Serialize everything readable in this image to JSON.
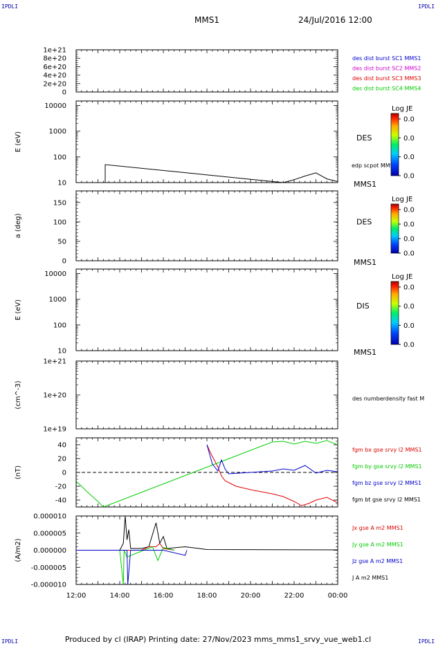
{
  "header": {
    "corner_tl": "IPDLI",
    "corner_tr": "IPDLI",
    "corner_bl": "IPDLI",
    "corner_br": "IPDLI",
    "spacecraft": "MMS1",
    "date_time": "24/Jul/2016 12:00"
  },
  "footer": {
    "text": "Produced by cl (IRAP)   Printing date: 27/Nov/2023   mms_mms1_srvy_vue_web1.cl"
  },
  "colors": {
    "black": "#000000",
    "red": "#dd0000",
    "green": "#00cc00",
    "blue": "#0000cc",
    "magenta": "#cc00cc"
  },
  "chart_data": {
    "type": "line",
    "x_ticks": [
      "12:00",
      "14:00",
      "16:00",
      "18:00",
      "20:00",
      "22:00",
      "00:00"
    ],
    "panels": [
      {
        "id": "burst",
        "ylabel": "",
        "yscale": "linear",
        "ylim": [
          0,
          1e+21
        ],
        "yticks": [
          "1e+21",
          "8e+20",
          "6e+20",
          "4e+20",
          "2e+20",
          "0"
        ],
        "dashed_zero": true,
        "legend": [
          {
            "text": "des dist burst SC1 MMS1",
            "color": "#0000cc"
          },
          {
            "text": "des dist burst SC2 MMS2",
            "color": "#cc00cc"
          },
          {
            "text": "des dist burst SC3 MMS3",
            "color": "#dd0000"
          },
          {
            "text": "des dist burst SC4 MMS4",
            "color": "#00cc00"
          }
        ]
      },
      {
        "id": "des-energy",
        "ylabel": "E (eV)",
        "yscale": "log",
        "ylim": [
          10,
          15000
        ],
        "yticks": [
          "10000",
          "1000",
          "100",
          "10"
        ],
        "instrument": "DES",
        "spacecraft_label": "MMS1",
        "overlay_label": "edp scpot MMS1",
        "colorbar": {
          "title": "Log JE",
          "ticks": [
            "0.0",
            "0.0",
            "0.0",
            "0.0"
          ]
        },
        "series": [
          {
            "name": "edp scpot MMS1",
            "color": "#000000",
            "x": [
              "13:20",
              "13:20",
              "21:30",
              "22:00",
              "22:30",
              "23:00",
              "23:30",
              "00:00"
            ],
            "values": [
              10,
              50,
              10,
              13,
              18,
              24,
              14,
              11
            ]
          }
        ]
      },
      {
        "id": "des-pitch",
        "ylabel": "a (deg)",
        "yscale": "linear",
        "ylim": [
          0,
          180
        ],
        "yticks": [
          "150",
          "100",
          "50",
          "0"
        ],
        "instrument": "DES",
        "spacecraft_label": "MMS1",
        "colorbar": {
          "title": "Log JE",
          "ticks": [
            "0.0",
            "0.0",
            "0.0",
            "0.0"
          ]
        }
      },
      {
        "id": "dis-energy",
        "ylabel": "E (eV)",
        "yscale": "log",
        "ylim": [
          10,
          15000
        ],
        "yticks": [
          "10000",
          "1000",
          "100",
          "10"
        ],
        "instrument": "DIS",
        "spacecraft_label": "MMS1",
        "colorbar": {
          "title": "Log JE",
          "ticks": [
            "0.0",
            "0.0",
            "0.0",
            "0.0"
          ]
        }
      },
      {
        "id": "density",
        "ylabel": "(cm^-3)",
        "yscale": "log",
        "ylim": [
          1e+19,
          1e+21
        ],
        "yticks": [
          "1e+21",
          "1e+20",
          "1e+19"
        ],
        "legend": [
          {
            "text": "des numberdensity fast M",
            "color": "#000000"
          }
        ]
      },
      {
        "id": "fgm",
        "ylabel": "(nT)",
        "yscale": "linear",
        "ylim": [
          -50,
          50
        ],
        "yticks": [
          "40",
          "20",
          "0",
          "-20",
          "-40"
        ],
        "dashed_zero": true,
        "legend": [
          {
            "text": "fgm bx gse srvy l2 MMS1",
            "color": "#dd0000"
          },
          {
            "text": "fgm by gse srvy l2 MMS1",
            "color": "#00cc00"
          },
          {
            "text": "fgm bz gse srvy l2 MMS1",
            "color": "#0000cc"
          },
          {
            "text": "fgm bt gse srvy l2 MMS1",
            "color": "#000000"
          }
        ],
        "series": [
          {
            "name": "fgm bx gse srvy l2 MMS1",
            "color": "#dd0000",
            "x": [
              "18:00",
              "18:10",
              "18:30",
              "18:40",
              "18:50",
              "19:20",
              "20:00",
              "20:30",
              "21:00",
              "21:30",
              "22:00",
              "22:20",
              "22:40",
              "23:00",
              "23:30",
              "00:00"
            ],
            "values": [
              40,
              28,
              8,
              -5,
              -12,
              -20,
              -25,
              -28,
              -31,
              -35,
              -42,
              -48,
              -45,
              -40,
              -36,
              -44
            ]
          },
          {
            "name": "fgm by gse srvy l2 MMS1",
            "color": "#00cc00",
            "x": [
              "12:00",
              "12:15",
              "12:30",
              "12:45",
              "13:00",
              "13:15",
              "21:00",
              "21:30",
              "22:00",
              "22:30",
              "23:00",
              "23:30",
              "00:00"
            ],
            "values": [
              -13,
              -20,
              -28,
              -35,
              -42,
              -50,
              44,
              45,
              41,
              45,
              42,
              46,
              40
            ]
          },
          {
            "name": "fgm bz gse srvy l2 MMS1",
            "color": "#0000cc",
            "x": [
              "18:00",
              "18:15",
              "18:30",
              "18:40",
              "18:50",
              "19:00",
              "19:30",
              "20:00",
              "20:30",
              "21:00",
              "21:30",
              "22:00",
              "22:30",
              "23:00",
              "23:30",
              "00:00"
            ],
            "values": [
              40,
              12,
              2,
              18,
              5,
              -2,
              -1,
              0,
              1,
              2,
              5,
              3,
              10,
              -1,
              3,
              1
            ]
          },
          {
            "name": "fgm bt gse srvy l2 MMS1",
            "color": "#000000",
            "x": [
              "18:00",
              "18:20"
            ],
            "values": [
              50,
              50
            ]
          }
        ]
      },
      {
        "id": "current",
        "ylabel": "(A/m2)",
        "yscale": "linear",
        "ylim": [
          -1e-05,
          1e-05
        ],
        "yticks": [
          "0.000010",
          "0.000005",
          "0.000000",
          "-0.000005",
          "-0.000010"
        ],
        "legend": [
          {
            "text": "Jx gse A m2 MMS1",
            "color": "#dd0000"
          },
          {
            "text": "Jy gse A m2 MMS1",
            "color": "#00cc00"
          },
          {
            "text": "Jz gse A m2 MMS1",
            "color": "#0000cc"
          },
          {
            "text": "J A m2 MMS1",
            "color": "#000000"
          }
        ],
        "series": [
          {
            "name": "J A m2 MMS1",
            "color": "#000000",
            "x": [
              "12:00",
              "14:00",
              "14:10",
              "14:15",
              "14:20",
              "14:25",
              "14:30",
              "15:00",
              "15:20",
              "15:40",
              "15:50",
              "16:00",
              "16:10",
              "17:00",
              "18:00",
              "00:00"
            ],
            "values": [
              0,
              0,
              2e-06,
              1e-05,
              3e-06,
              6e-06,
              5e-07,
              5e-07,
              1e-06,
              8e-06,
              2e-06,
              4e-06,
              5e-07,
              1e-06,
              2e-07,
              1e-07
            ]
          },
          {
            "name": "Jx gse A m2 MMS1",
            "color": "#dd0000",
            "x": [
              "12:00",
              "15:00",
              "15:20",
              "15:40",
              "15:50",
              "16:00",
              "16:30"
            ],
            "values": [
              0,
              0,
              1e-06,
              1e-06,
              2e-06,
              5e-07,
              0
            ]
          },
          {
            "name": "Jy gse A m2 MMS1",
            "color": "#00cc00",
            "x": [
              "12:00",
              "14:00",
              "14:10",
              "14:12",
              "14:20",
              "15:30",
              "15:45",
              "16:00",
              "16:30"
            ],
            "values": [
              0,
              0,
              -1e-05,
              0,
              -2e-06,
              1e-06,
              -3e-06,
              8e-07,
              0
            ]
          },
          {
            "name": "Jz gse A m2 MMS1",
            "color": "#0000cc",
            "x": [
              "12:00",
              "14:20",
              "14:22",
              "14:30",
              "15:10",
              "15:50",
              "16:00",
              "17:00",
              "17:05"
            ],
            "values": [
              0,
              0,
              -1e-05,
              0,
              0,
              0,
              0,
              -1.5e-06,
              0
            ]
          }
        ]
      }
    ]
  }
}
